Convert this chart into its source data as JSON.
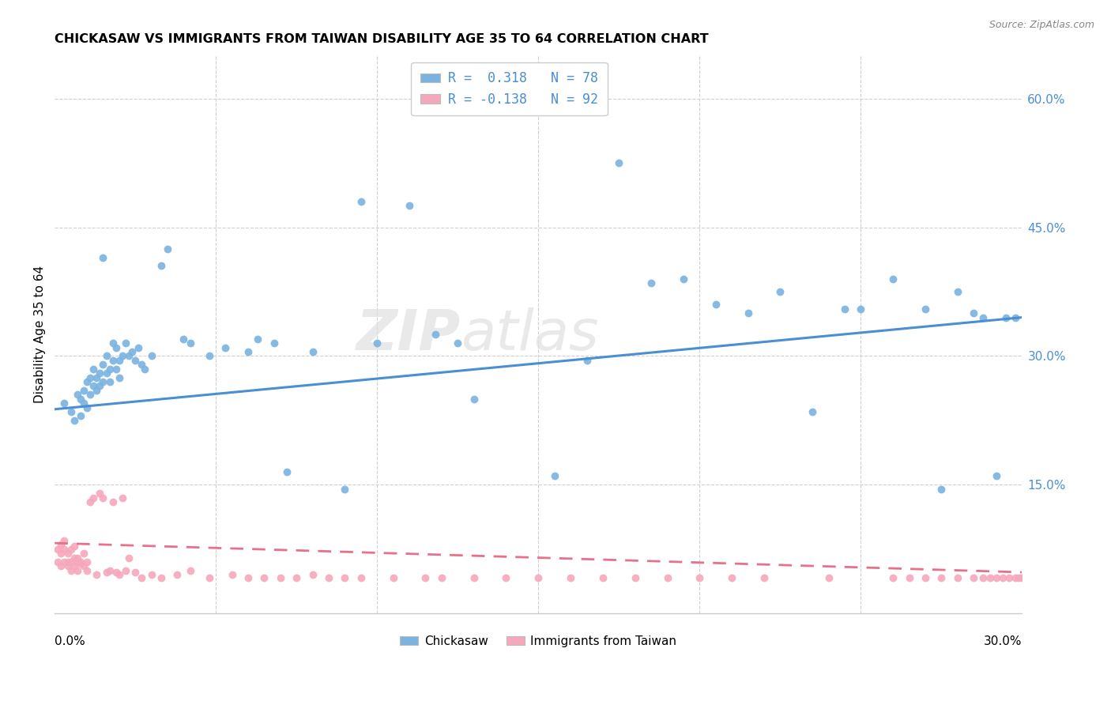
{
  "title": "CHICKASAW VS IMMIGRANTS FROM TAIWAN DISABILITY AGE 35 TO 64 CORRELATION CHART",
  "source": "Source: ZipAtlas.com",
  "ylabel": "Disability Age 35 to 64",
  "watermark_text": "ZIP",
  "watermark_text2": "atlas",
  "legend1_label": "R =  0.318   N = 78",
  "legend2_label": "R = -0.138   N = 92",
  "legend_bottom1": "Chickasaw",
  "legend_bottom2": "Immigrants from Taiwan",
  "blue_color": "#7ab3e0",
  "pink_color": "#f5a8bb",
  "blue_line_color": "#4a8fd4",
  "pink_line_color": "#e8708a",
  "xlim": [
    0.0,
    0.3
  ],
  "ylim": [
    0.0,
    0.65
  ],
  "right_ytick_vals": [
    0.15,
    0.3,
    0.45,
    0.6
  ],
  "right_ytick_labels": [
    "15.0%",
    "30.0%",
    "45.0%",
    "60.0%"
  ],
  "blue_line_x": [
    0.0,
    0.3
  ],
  "blue_line_y": [
    0.238,
    0.345
  ],
  "pink_line_x": [
    0.0,
    0.3
  ],
  "pink_line_y": [
    0.082,
    0.048
  ],
  "blue_scatter_x": [
    0.003,
    0.005,
    0.006,
    0.007,
    0.008,
    0.008,
    0.009,
    0.009,
    0.01,
    0.01,
    0.011,
    0.011,
    0.012,
    0.012,
    0.013,
    0.013,
    0.014,
    0.014,
    0.015,
    0.015,
    0.015,
    0.016,
    0.016,
    0.017,
    0.017,
    0.018,
    0.018,
    0.019,
    0.019,
    0.02,
    0.02,
    0.021,
    0.022,
    0.023,
    0.024,
    0.025,
    0.026,
    0.027,
    0.028,
    0.03,
    0.033,
    0.035,
    0.04,
    0.042,
    0.048,
    0.053,
    0.06,
    0.063,
    0.068,
    0.072,
    0.08,
    0.09,
    0.095,
    0.1,
    0.11,
    0.118,
    0.125,
    0.13,
    0.155,
    0.165,
    0.175,
    0.185,
    0.195,
    0.205,
    0.215,
    0.225,
    0.235,
    0.245,
    0.25,
    0.26,
    0.27,
    0.275,
    0.28,
    0.285,
    0.288,
    0.292,
    0.295,
    0.298
  ],
  "blue_scatter_y": [
    0.245,
    0.235,
    0.225,
    0.255,
    0.23,
    0.25,
    0.245,
    0.26,
    0.24,
    0.27,
    0.255,
    0.275,
    0.265,
    0.285,
    0.26,
    0.275,
    0.28,
    0.265,
    0.29,
    0.27,
    0.415,
    0.28,
    0.3,
    0.285,
    0.27,
    0.295,
    0.315,
    0.285,
    0.31,
    0.295,
    0.275,
    0.3,
    0.315,
    0.3,
    0.305,
    0.295,
    0.31,
    0.29,
    0.285,
    0.3,
    0.405,
    0.425,
    0.32,
    0.315,
    0.3,
    0.31,
    0.305,
    0.32,
    0.315,
    0.165,
    0.305,
    0.145,
    0.48,
    0.315,
    0.475,
    0.325,
    0.315,
    0.25,
    0.16,
    0.295,
    0.525,
    0.385,
    0.39,
    0.36,
    0.35,
    0.375,
    0.235,
    0.355,
    0.355,
    0.39,
    0.355,
    0.145,
    0.375,
    0.35,
    0.345,
    0.16,
    0.345,
    0.345
  ],
  "pink_scatter_x": [
    0.001,
    0.001,
    0.002,
    0.002,
    0.002,
    0.003,
    0.003,
    0.003,
    0.004,
    0.004,
    0.004,
    0.005,
    0.005,
    0.005,
    0.006,
    0.006,
    0.006,
    0.007,
    0.007,
    0.007,
    0.008,
    0.008,
    0.009,
    0.009,
    0.01,
    0.01,
    0.011,
    0.012,
    0.013,
    0.014,
    0.015,
    0.016,
    0.017,
    0.018,
    0.019,
    0.02,
    0.021,
    0.022,
    0.023,
    0.025,
    0.027,
    0.03,
    0.033,
    0.038,
    0.042,
    0.048,
    0.055,
    0.06,
    0.065,
    0.07,
    0.075,
    0.08,
    0.085,
    0.09,
    0.095,
    0.105,
    0.115,
    0.12,
    0.13,
    0.14,
    0.15,
    0.16,
    0.17,
    0.18,
    0.19,
    0.2,
    0.21,
    0.22,
    0.24,
    0.26,
    0.265,
    0.27,
    0.275,
    0.28,
    0.285,
    0.288,
    0.29,
    0.292,
    0.294,
    0.296,
    0.298,
    0.299,
    0.3,
    0.301,
    0.302,
    0.303,
    0.304,
    0.305,
    0.306,
    0.307,
    0.308,
    0.309
  ],
  "pink_scatter_y": [
    0.06,
    0.075,
    0.055,
    0.07,
    0.08,
    0.06,
    0.075,
    0.085,
    0.055,
    0.07,
    0.06,
    0.06,
    0.075,
    0.05,
    0.065,
    0.078,
    0.055,
    0.06,
    0.05,
    0.065,
    0.058,
    0.06,
    0.07,
    0.055,
    0.06,
    0.05,
    0.13,
    0.135,
    0.045,
    0.14,
    0.135,
    0.048,
    0.05,
    0.13,
    0.048,
    0.045,
    0.135,
    0.05,
    0.065,
    0.048,
    0.042,
    0.045,
    0.042,
    0.045,
    0.05,
    0.042,
    0.045,
    0.042,
    0.042,
    0.042,
    0.042,
    0.045,
    0.042,
    0.042,
    0.042,
    0.042,
    0.042,
    0.042,
    0.042,
    0.042,
    0.042,
    0.042,
    0.042,
    0.042,
    0.042,
    0.042,
    0.042,
    0.042,
    0.042,
    0.042,
    0.042,
    0.042,
    0.042,
    0.042,
    0.042,
    0.042,
    0.042,
    0.042,
    0.042,
    0.042,
    0.042,
    0.042,
    0.042,
    0.042,
    0.042,
    0.042,
    0.042,
    0.042,
    0.042,
    0.042,
    0.042,
    0.042
  ]
}
